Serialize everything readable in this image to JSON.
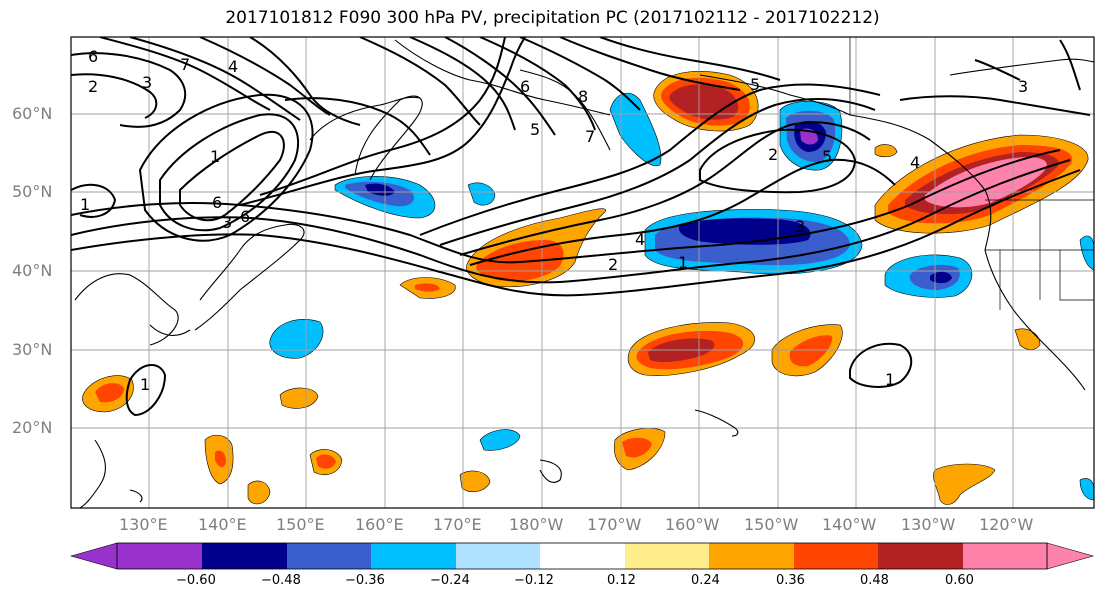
{
  "title": "2017101812 F090 300 hPa PV, precipitation PC (2017102112 - 2017102212)",
  "lat_labels": [
    "60°N",
    "50°N",
    "40°N",
    "30°N",
    "20°N"
  ],
  "lon_labels": [
    "130°E",
    "140°E",
    "150°E",
    "160°E",
    "170°E",
    "180°W",
    "170°W",
    "160°W",
    "150°W",
    "140°W",
    "130°W",
    "120°W"
  ],
  "colorbar": {
    "ticks": [
      "−0.60",
      "−0.48",
      "−0.36",
      "−0.24",
      "−0.12",
      "0.12",
      "0.24",
      "0.36",
      "0.48",
      "0.60"
    ],
    "colors": [
      "#9932cc",
      "#00008b",
      "#3a5fcd",
      "#00bfff",
      "#b0e2ff",
      "#ffffff",
      "#ffec8b",
      "#ffa500",
      "#ff4500",
      "#b22222",
      "#ff82ab"
    ]
  },
  "contour_labels": [
    "6",
    "3",
    "7",
    "4",
    "2",
    "1",
    "6",
    "3",
    "6",
    "1",
    "8",
    "7",
    "5",
    "6",
    "5",
    "4",
    "3",
    "4",
    "2",
    "1",
    "1",
    "1",
    "2",
    "5",
    "3"
  ]
}
